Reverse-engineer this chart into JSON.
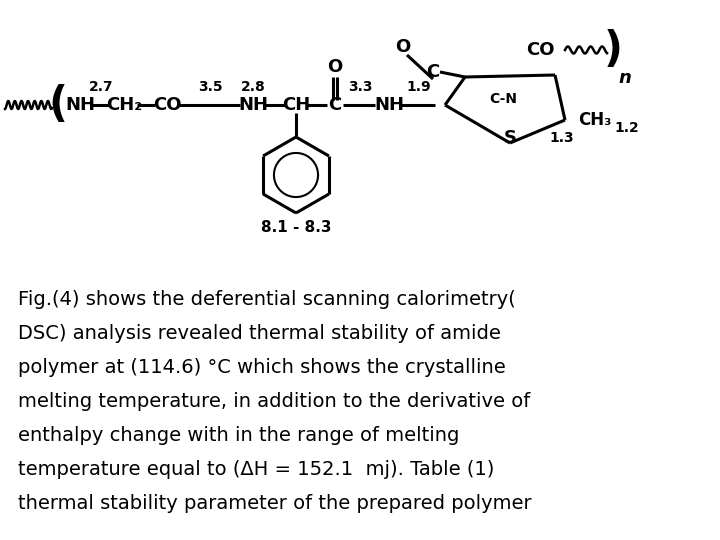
{
  "background_color": "#ffffff",
  "text_color": "#000000",
  "figure_width": 7.2,
  "figure_height": 5.4,
  "dpi": 100,
  "caption_lines": [
    "Fig.(4) shows the deferential scanning calorimetry(",
    "DSC) analysis revealed thermal stability of amide",
    "polymer at (114.6) °C which shows the crystalline",
    "melting temperature, in addition to the derivative of",
    "enthalpy change with in the range of melting",
    "temperature equal to (ΔH = 152.1  mj). Table (1)",
    "thermal stability parameter of the prepared polymer"
  ],
  "caption_fontsize": 14.0
}
